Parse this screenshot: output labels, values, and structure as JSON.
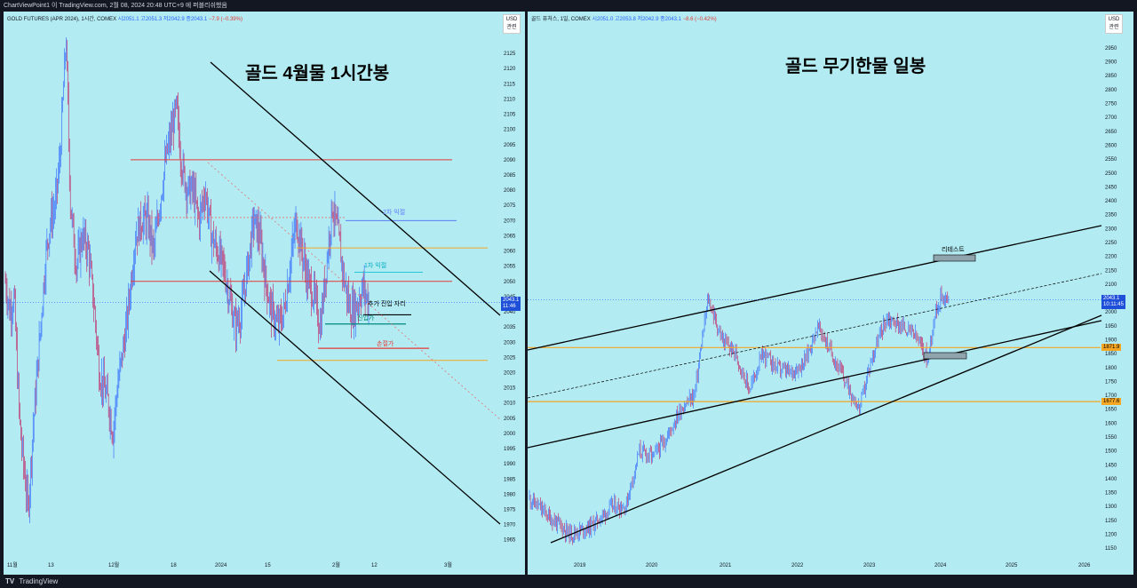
{
  "header": {
    "text": "ChartViewPoint1 이 TradingView.com, 2월 08, 2024 20:48 UTC+9 에 퍼블리쉬했음"
  },
  "footer": {
    "logo": "TV",
    "brand": "TradingView"
  },
  "left_pane": {
    "heading": "골드 4월물 1시간봉",
    "legend": {
      "symbol": "GOLD FUTURES (APR 2024), 1시간, COMEX",
      "open": "시2051.1",
      "high": "고2051.3",
      "low": "저2042.9",
      "close": "종2043.1",
      "change": "−7.9 (−0.39%)"
    },
    "currency": "USD",
    "currency_sub": "관련",
    "current_price": "2043.1",
    "current_time": "11:46",
    "annotations": {
      "tp2": "2차 익절",
      "tp1": "1차 익절",
      "add_entry": "추가 진입 자리",
      "entry": "진입가",
      "stop": "손절가"
    }
  },
  "right_pane": {
    "heading": "골드 무기한물 일봉",
    "legend": {
      "symbol": "골드 퓨처스, 1일, COMEX",
      "open": "시2051.0",
      "high": "고2053.8",
      "low": "저2042.9",
      "close": "종2043.1",
      "change": "−8.6 (−0.42%)"
    },
    "currency": "USD",
    "currency_sub": "관련",
    "current_price": "2043.1",
    "current_time": "10:11:45",
    "level1": "1871.9",
    "level2": "1677.6",
    "annotations": {
      "retest": "리테스트"
    }
  },
  "chart_data": [
    {
      "type": "candlestick",
      "title": "골드 4월물 1시간봉",
      "x_ticks": [
        "11월",
        "13",
        "12월",
        "18",
        "2024",
        "15",
        "2월",
        "12",
        "3월"
      ],
      "y_ticks": [
        1965,
        1970,
        1975,
        1980,
        1985,
        1990,
        1995,
        2000,
        2005,
        2010,
        2015,
        2020,
        2025,
        2030,
        2035,
        2040,
        2045,
        2050,
        2055,
        2060,
        2065,
        2070,
        2075,
        2080,
        2085,
        2090,
        2095,
        2100,
        2105,
        2110,
        2115,
        2120,
        2125
      ],
      "ylim": [
        1962,
        2130
      ],
      "close_path": [
        [
          0,
          2050
        ],
        [
          3,
          2040
        ],
        [
          6,
          2045
        ],
        [
          8,
          2020
        ],
        [
          10,
          2000
        ],
        [
          13,
          1985
        ],
        [
          15,
          1975
        ],
        [
          18,
          2000
        ],
        [
          21,
          2020
        ],
        [
          24,
          2040
        ],
        [
          27,
          2060
        ],
        [
          30,
          2070
        ],
        [
          33,
          2075
        ],
        [
          36,
          2090
        ],
        [
          38,
          2110
        ],
        [
          40,
          2130
        ],
        [
          43,
          2075
        ],
        [
          47,
          2055
        ],
        [
          51,
          2065
        ],
        [
          55,
          2060
        ],
        [
          59,
          2040
        ],
        [
          62,
          2020
        ],
        [
          65,
          2015
        ],
        [
          68,
          2010
        ],
        [
          71,
          2000
        ],
        [
          74,
          2015
        ],
        [
          77,
          2025
        ],
        [
          80,
          2035
        ],
        [
          83,
          2050
        ],
        [
          86,
          2065
        ],
        [
          90,
          2070
        ],
        [
          94,
          2070
        ],
        [
          98,
          2060
        ],
        [
          102,
          2075
        ],
        [
          106,
          2090
        ],
        [
          110,
          2100
        ],
        [
          113,
          2107
        ],
        [
          116,
          2090
        ],
        [
          120,
          2080
        ],
        [
          124,
          2080
        ],
        [
          128,
          2070
        ],
        [
          132,
          2080
        ],
        [
          136,
          2065
        ],
        [
          140,
          2060
        ],
        [
          144,
          2055
        ],
        [
          148,
          2045
        ],
        [
          152,
          2035
        ],
        [
          156,
          2040
        ],
        [
          160,
          2055
        ],
        [
          164,
          2070
        ],
        [
          168,
          2065
        ],
        [
          172,
          2050
        ],
        [
          176,
          2040
        ],
        [
          180,
          2035
        ],
        [
          184,
          2040
        ],
        [
          188,
          2055
        ],
        [
          192,
          2070
        ],
        [
          196,
          2060
        ],
        [
          200,
          2050
        ],
        [
          204,
          2045
        ],
        [
          208,
          2035
        ],
        [
          212,
          2055
        ],
        [
          216,
          2075
        ],
        [
          220,
          2065
        ],
        [
          224,
          2050
        ],
        [
          228,
          2040
        ],
        [
          232,
          2042
        ],
        [
          236,
          2048
        ],
        [
          240,
          2043
        ]
      ],
      "price_lines": [
        {
          "name": "red-upper",
          "value": 2090
        },
        {
          "name": "red-lower",
          "value": 2050
        },
        {
          "name": "dotted-resistance",
          "value": 2071
        },
        {
          "name": "second-target",
          "value": 2070
        },
        {
          "name": "orange-upper",
          "value": 2061
        },
        {
          "name": "first-target",
          "value": 2053
        },
        {
          "name": "add-entry",
          "value": 2039
        },
        {
          "name": "entry",
          "value": 2036
        },
        {
          "name": "stop",
          "value": 2028
        },
        {
          "name": "orange-lower",
          "value": 2024
        }
      ],
      "current_price": 2043.1
    },
    {
      "type": "candlestick",
      "title": "골드 무기한물 일봉",
      "x_ticks": [
        "2019",
        "2020",
        "2021",
        "2022",
        "2023",
        "2024",
        "2025",
        "2026"
      ],
      "y_ticks": [
        1150,
        1200,
        1250,
        1300,
        1350,
        1400,
        1450,
        1500,
        1550,
        1600,
        1650,
        1700,
        1750,
        1800,
        1850,
        1900,
        1950,
        2000,
        2050,
        2100,
        2150,
        2200,
        2250,
        2300,
        2350,
        2400,
        2450,
        2500,
        2550,
        2600,
        2650,
        2700,
        2750,
        2800,
        2850,
        2900,
        2950
      ],
      "ylim": [
        1125,
        2985
      ],
      "close_path": [
        [
          2018.0,
          1330
        ],
        [
          2018.3,
          1260
        ],
        [
          2018.6,
          1200
        ],
        [
          2018.9,
          1230
        ],
        [
          2019.2,
          1300
        ],
        [
          2019.4,
          1300
        ],
        [
          2019.6,
          1500
        ],
        [
          2019.8,
          1480
        ],
        [
          2020.0,
          1550
        ],
        [
          2020.2,
          1650
        ],
        [
          2020.4,
          1700
        ],
        [
          2020.6,
          2050
        ],
        [
          2020.8,
          1900
        ],
        [
          2021.0,
          1850
        ],
        [
          2021.2,
          1720
        ],
        [
          2021.4,
          1850
        ],
        [
          2021.6,
          1800
        ],
        [
          2021.8,
          1780
        ],
        [
          2022.0,
          1820
        ],
        [
          2022.2,
          1950
        ],
        [
          2022.4,
          1850
        ],
        [
          2022.6,
          1750
        ],
        [
          2022.8,
          1650
        ],
        [
          2023.0,
          1850
        ],
        [
          2023.2,
          1980
        ],
        [
          2023.4,
          1950
        ],
        [
          2023.6,
          1920
        ],
        [
          2023.8,
          1830
        ],
        [
          2023.9,
          2000
        ],
        [
          2024.0,
          2060
        ],
        [
          2024.1,
          2043
        ]
      ],
      "price_lines": [
        {
          "name": "level-1871",
          "value": 1871.9
        },
        {
          "name": "level-1677",
          "value": 1677.6
        }
      ],
      "current_price": 2043.1
    }
  ]
}
